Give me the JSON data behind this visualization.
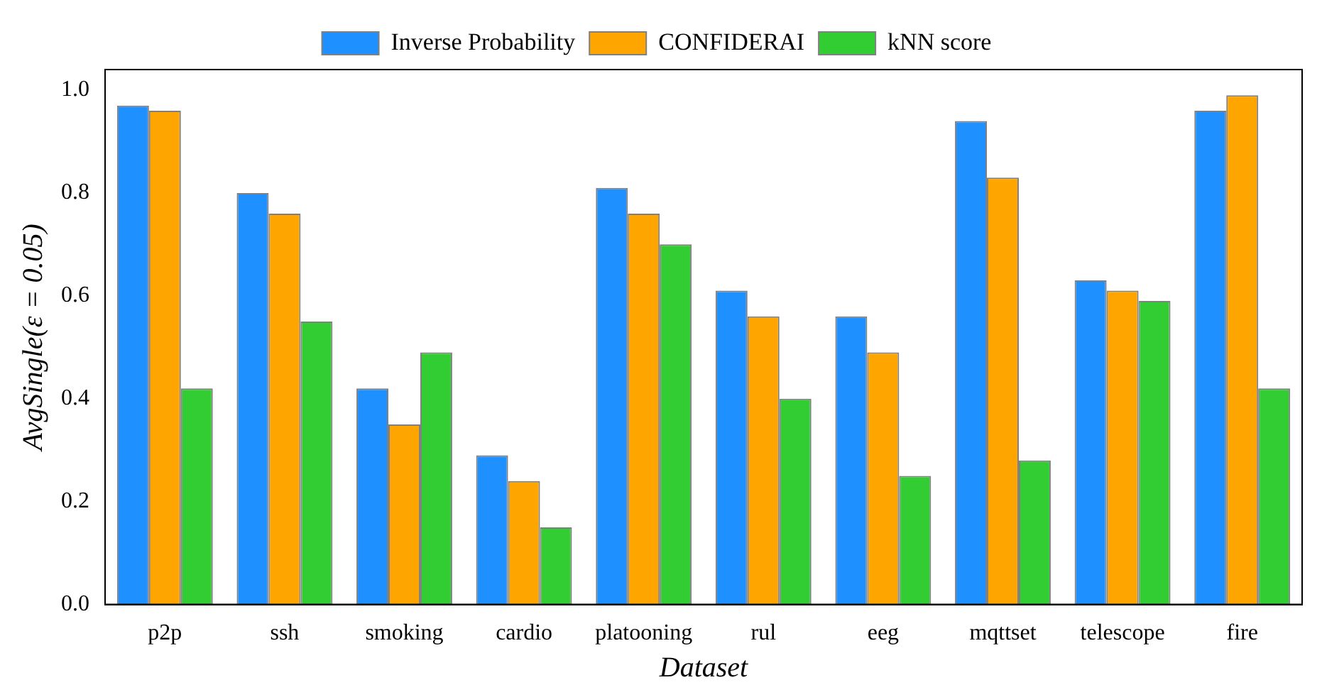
{
  "chart_data": {
    "type": "bar",
    "xlabel": "Dataset",
    "ylabel": "AvgSingle(ε = 0.05)",
    "categories": [
      "p2p",
      "ssh",
      "smoking",
      "cardio",
      "platooning",
      "rul",
      "eeg",
      "mqttset",
      "telescope",
      "fire"
    ],
    "series": [
      {
        "name": "Inverse Probability",
        "color": "#1e90ff",
        "values": [
          0.97,
          0.8,
          0.42,
          0.29,
          0.81,
          0.61,
          0.56,
          0.94,
          0.63,
          0.96
        ]
      },
      {
        "name": "CONFIDERAI",
        "color": "#ffa500",
        "values": [
          0.96,
          0.76,
          0.35,
          0.24,
          0.76,
          0.56,
          0.49,
          0.83,
          0.61,
          0.99
        ]
      },
      {
        "name": "kNN score",
        "color": "#32cd32",
        "values": [
          0.42,
          0.55,
          0.49,
          0.15,
          0.7,
          0.4,
          0.25,
          0.28,
          0.59,
          0.42
        ]
      }
    ],
    "ylim": [
      0,
      1.04
    ],
    "yticks": [
      {
        "value": 0,
        "label": "0.0"
      },
      {
        "value": 0.2,
        "label": "0.2"
      },
      {
        "value": 0.4,
        "label": "0.4"
      },
      {
        "value": 0.6,
        "label": "0.6"
      },
      {
        "value": 0.8,
        "label": "0.8"
      },
      {
        "value": 1,
        "label": "1.0"
      }
    ],
    "grid": false,
    "legend": "top"
  }
}
